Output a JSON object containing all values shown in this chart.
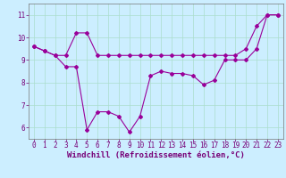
{
  "x": [
    0,
    1,
    2,
    3,
    4,
    5,
    6,
    7,
    8,
    9,
    10,
    11,
    12,
    13,
    14,
    15,
    16,
    17,
    18,
    19,
    20,
    21,
    22,
    23
  ],
  "line1": [
    9.6,
    9.4,
    9.2,
    9.2,
    10.2,
    10.2,
    9.2,
    9.2,
    9.2,
    9.2,
    9.2,
    9.2,
    9.2,
    9.2,
    9.2,
    9.2,
    9.2,
    9.2,
    9.2,
    9.2,
    9.5,
    10.5,
    11.0,
    11.0
  ],
  "line2": [
    9.6,
    9.4,
    9.2,
    8.7,
    8.7,
    5.9,
    6.7,
    6.7,
    6.5,
    5.8,
    6.5,
    8.3,
    8.5,
    8.4,
    8.4,
    8.3,
    7.9,
    8.1,
    9.0,
    9.0,
    9.0,
    9.5,
    11.0,
    11.0
  ],
  "ylim": [
    5.5,
    11.5
  ],
  "xlim": [
    -0.5,
    23.5
  ],
  "yticks": [
    6,
    7,
    8,
    9,
    10,
    11
  ],
  "xticks": [
    0,
    1,
    2,
    3,
    4,
    5,
    6,
    7,
    8,
    9,
    10,
    11,
    12,
    13,
    14,
    15,
    16,
    17,
    18,
    19,
    20,
    21,
    22,
    23
  ],
  "xlabel": "Windchill (Refroidissement éolien,°C)",
  "line_color": "#990099",
  "bg_color": "#cceeff",
  "grid_color": "#aaddcc",
  "marker": "D",
  "marker_size": 2.0,
  "line_width": 0.8,
  "xlabel_fontsize": 6.5,
  "tick_fontsize": 5.5,
  "xlabel_color": "#770077",
  "tick_color": "#770077",
  "axis_color": "#777777"
}
